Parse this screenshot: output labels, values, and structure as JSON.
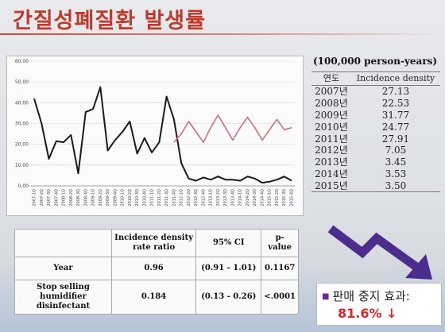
{
  "title": "간질성폐질환 발생률",
  "colors": {
    "title": "#c0392b",
    "observed_line": "#1a1a1a",
    "counterfactual_line": "#c9717a",
    "arrow": "#4a2d8c",
    "effect_value": "#d12a2a"
  },
  "chart_data": {
    "type": "line",
    "ylim": [
      0,
      60
    ],
    "yticks": [
      "0.00",
      "10.00",
      "20.00",
      "30.00",
      "40.00",
      "50.00",
      "60.00"
    ],
    "grid": true,
    "categories": [
      "2007-1Q",
      "2007-2Q",
      "2007-3Q",
      "2007-4Q",
      "2008-1Q",
      "2008-2Q",
      "2008-3Q",
      "2008-4Q",
      "2009-1Q",
      "2009-2Q",
      "2009-3Q",
      "2009-4Q",
      "2010-1Q",
      "2010-2Q",
      "2010-3Q",
      "2010-4Q",
      "2011-1Q",
      "2011-2Q",
      "2011-3Q",
      "2011-4Q",
      "2012-1Q",
      "2012-2Q",
      "2012-3Q",
      "2012-4Q",
      "2013-1Q",
      "2013-2Q",
      "2013-3Q",
      "2013-4Q",
      "2014-1Q",
      "2014-2Q",
      "2014-3Q",
      "2014-4Q",
      "2015-1Q",
      "2015-2Q",
      "2015-3Q",
      "2015-4Q"
    ],
    "series": [
      {
        "key": "observed",
        "values": [
          42,
          30,
          13,
          21.5,
          21,
          24.5,
          6,
          35.5,
          37,
          47.5,
          17,
          22,
          26,
          31,
          15.5,
          23,
          16,
          21,
          43,
          32,
          11,
          3.5,
          2.5,
          4,
          3,
          4.5,
          3,
          3,
          2.5,
          4.5,
          3.5,
          1.5,
          2,
          3,
          4.5,
          2.5
        ]
      },
      {
        "key": "counterfactual",
        "values": [
          null,
          null,
          null,
          null,
          null,
          null,
          null,
          null,
          null,
          null,
          null,
          null,
          null,
          null,
          null,
          null,
          null,
          null,
          null,
          21,
          25,
          31,
          26,
          21,
          28,
          34,
          28,
          22,
          28,
          33,
          28,
          22,
          27,
          32,
          27,
          28
        ]
      }
    ]
  },
  "density": {
    "unit": "(100,000 person-years)",
    "headers": [
      "연도",
      "Incidence density"
    ],
    "rows": [
      {
        "year": "2007년",
        "value": "27.13"
      },
      {
        "year": "2008년",
        "value": "22.53"
      },
      {
        "year": "2009년",
        "value": "31.77"
      },
      {
        "year": "2010년",
        "value": "24.77"
      },
      {
        "year": "2011년",
        "value": "27.91"
      },
      {
        "year": "2012년",
        "value": "7.05"
      },
      {
        "year": "2013년",
        "value": "3.45"
      },
      {
        "year": "2014년",
        "value": "3.53"
      },
      {
        "year": "2015년",
        "value": "3.50"
      }
    ]
  },
  "ratio_table": {
    "headers": [
      "",
      "Incidence density rate ratio",
      "95% CI",
      "p-value"
    ],
    "rows": [
      {
        "label": "Year",
        "ratio": "0.96",
        "ci": "(0.91 - 1.01)",
        "p": "0.1167"
      },
      {
        "label": "Stop selling humidifier disinfectant",
        "ratio": "0.184",
        "ci": "(0.13 - 0.26)",
        "p": "<.0001"
      }
    ]
  },
  "effect": {
    "label": "판매 중지 효과:",
    "value": "81.6% ↓"
  }
}
